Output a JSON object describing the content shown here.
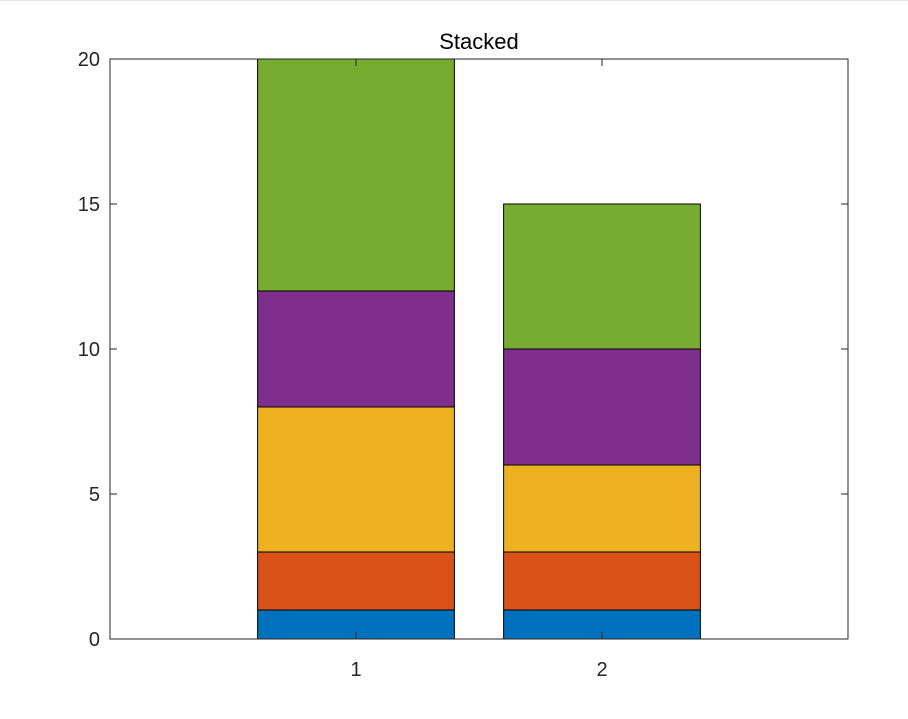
{
  "chart_data": {
    "type": "bar",
    "stacked": true,
    "title": "Stacked",
    "xlabel": "",
    "ylabel": "",
    "categories": [
      "1",
      "2"
    ],
    "series": [
      {
        "values": [
          1,
          1
        ],
        "color": "#0072BD"
      },
      {
        "values": [
          2,
          2
        ],
        "color": "#D95319"
      },
      {
        "values": [
          5,
          3
        ],
        "color": "#EDB120"
      },
      {
        "values": [
          4,
          4
        ],
        "color": "#7E2F8E"
      },
      {
        "values": [
          8,
          5
        ],
        "color": "#77AC30"
      }
    ],
    "xlim": [
      0,
      3
    ],
    "ylim": [
      0,
      20
    ],
    "yticks": [
      0,
      5,
      10,
      15,
      20
    ],
    "xticks": [
      1,
      2
    ],
    "grid": false,
    "legend": "none",
    "box": true
  }
}
